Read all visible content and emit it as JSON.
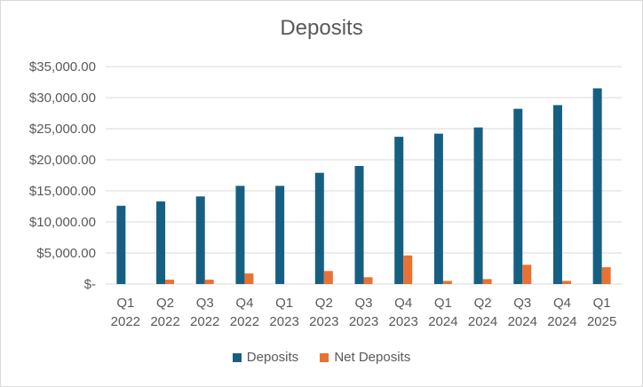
{
  "chart_data": {
    "type": "bar",
    "title": "Deposits",
    "xlabel": "",
    "ylabel": "",
    "ylim": [
      0,
      35000
    ],
    "y_ticks": [
      {
        "value": 0,
        "label": "$-"
      },
      {
        "value": 5000,
        "label": "$5,000.00"
      },
      {
        "value": 10000,
        "label": "$10,000.00"
      },
      {
        "value": 15000,
        "label": "$15,000.00"
      },
      {
        "value": 20000,
        "label": "$20,000.00"
      },
      {
        "value": 25000,
        "label": "$25,000.00"
      },
      {
        "value": 30000,
        "label": "$30,000.00"
      },
      {
        "value": 35000,
        "label": "$35,000.00"
      }
    ],
    "categories": [
      [
        "Q1",
        "2022"
      ],
      [
        "Q2",
        "2022"
      ],
      [
        "Q3",
        "2022"
      ],
      [
        "Q4",
        "2022"
      ],
      [
        "Q1",
        "2023"
      ],
      [
        "Q2",
        "2023"
      ],
      [
        "Q3",
        "2023"
      ],
      [
        "Q4",
        "2023"
      ],
      [
        "Q1",
        "2024"
      ],
      [
        "Q2",
        "2024"
      ],
      [
        "Q3",
        "2024"
      ],
      [
        "Q4",
        "2024"
      ],
      [
        "Q1",
        "2025"
      ]
    ],
    "series": [
      {
        "name": "Deposits",
        "color": "#156082",
        "values": [
          12600,
          13300,
          14100,
          15800,
          15800,
          17900,
          19000,
          23700,
          24200,
          25200,
          28200,
          28800,
          31500
        ]
      },
      {
        "name": "Net Deposits",
        "color": "#e97132",
        "values": [
          0,
          700,
          700,
          1700,
          0,
          2100,
          1100,
          4600,
          500,
          800,
          3100,
          500,
          2700
        ]
      }
    ],
    "grid": true,
    "legend_position": "bottom"
  }
}
